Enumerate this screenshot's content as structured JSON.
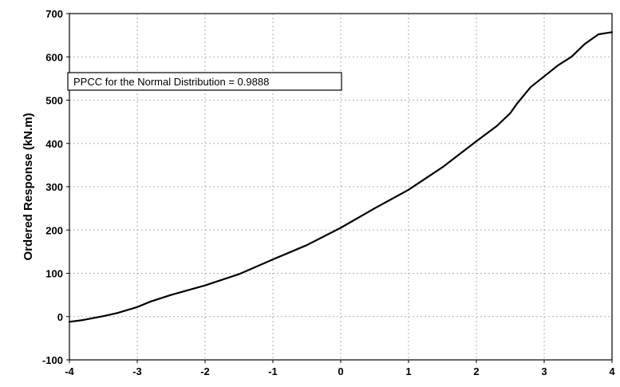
{
  "chart_data": {
    "type": "line",
    "title": "",
    "xlabel": "",
    "ylabel": "Ordered Response  (kN.m)",
    "xlim": [
      -4,
      4
    ],
    "ylim": [
      -100,
      700
    ],
    "xticks": [
      -4,
      -3,
      -2,
      -1,
      0,
      1,
      2,
      3,
      4
    ],
    "yticks": [
      -100,
      0,
      100,
      200,
      300,
      400,
      500,
      600,
      700
    ],
    "grid": true,
    "annotation": "PPCC for the Normal Distribution = 0.9888",
    "series": [
      {
        "x": [
          -4,
          -3.8,
          -3.6,
          -3.5,
          -3.3,
          -3.0,
          -2.8,
          -2.5,
          -2.0,
          -1.5,
          -1.0,
          -0.5,
          0,
          0.5,
          1.0,
          1.5,
          2.0,
          2.3,
          2.5,
          2.6,
          2.8,
          3.0,
          3.2,
          3.4,
          3.6,
          3.8,
          4.0
        ],
        "y": [
          -12,
          -8,
          -2,
          1,
          8,
          22,
          35,
          50,
          72,
          98,
          132,
          165,
          205,
          250,
          293,
          345,
          405,
          440,
          470,
          492,
          530,
          555,
          580,
          600,
          630,
          652,
          657
        ]
      }
    ]
  }
}
